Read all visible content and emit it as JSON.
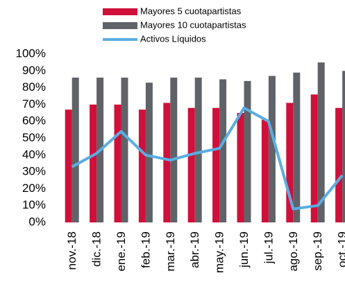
{
  "chart_data": {
    "type": "bar-line",
    "categories": [
      "nov.-18",
      "dic.-18",
      "ene.-19",
      "feb.-19",
      "mar.-19",
      "abr.-19",
      "may.-19",
      "jun.-19",
      "jul.-19",
      "ago.-19",
      "sep.-19",
      "oct.-19"
    ],
    "series": [
      {
        "name": "Mayores 5 cuotapartistas",
        "type": "bar",
        "color": "#d0103a",
        "values": [
          67,
          70,
          70,
          67,
          71,
          68,
          68,
          65,
          61,
          71,
          76,
          68
        ]
      },
      {
        "name": "Mayores 10 cuotapartistas",
        "type": "bar",
        "color": "#5f6368",
        "values": [
          86,
          86,
          86,
          83,
          86,
          86,
          85,
          84,
          87,
          89,
          95,
          90
        ]
      },
      {
        "name": "Activos Líquidos",
        "type": "line",
        "color": "#5aaee2",
        "values": [
          33,
          41,
          54,
          40,
          37,
          41,
          44,
          68,
          60,
          8,
          10,
          28
        ]
      }
    ],
    "ylim": [
      0,
      100
    ],
    "yticks": [
      {
        "value": 0,
        "label": "0%"
      },
      {
        "value": 10,
        "label": "10%"
      },
      {
        "value": 20,
        "label": "20%"
      },
      {
        "value": 30,
        "label": "30%"
      },
      {
        "value": 40,
        "label": "40%"
      },
      {
        "value": 50,
        "label": "50%"
      },
      {
        "value": 60,
        "label": "60%"
      },
      {
        "value": 70,
        "label": "70%"
      },
      {
        "value": 80,
        "label": "80%"
      },
      {
        "value": 90,
        "label": "90%"
      },
      {
        "value": 100,
        "label": "100%"
      }
    ],
    "grid": false
  }
}
